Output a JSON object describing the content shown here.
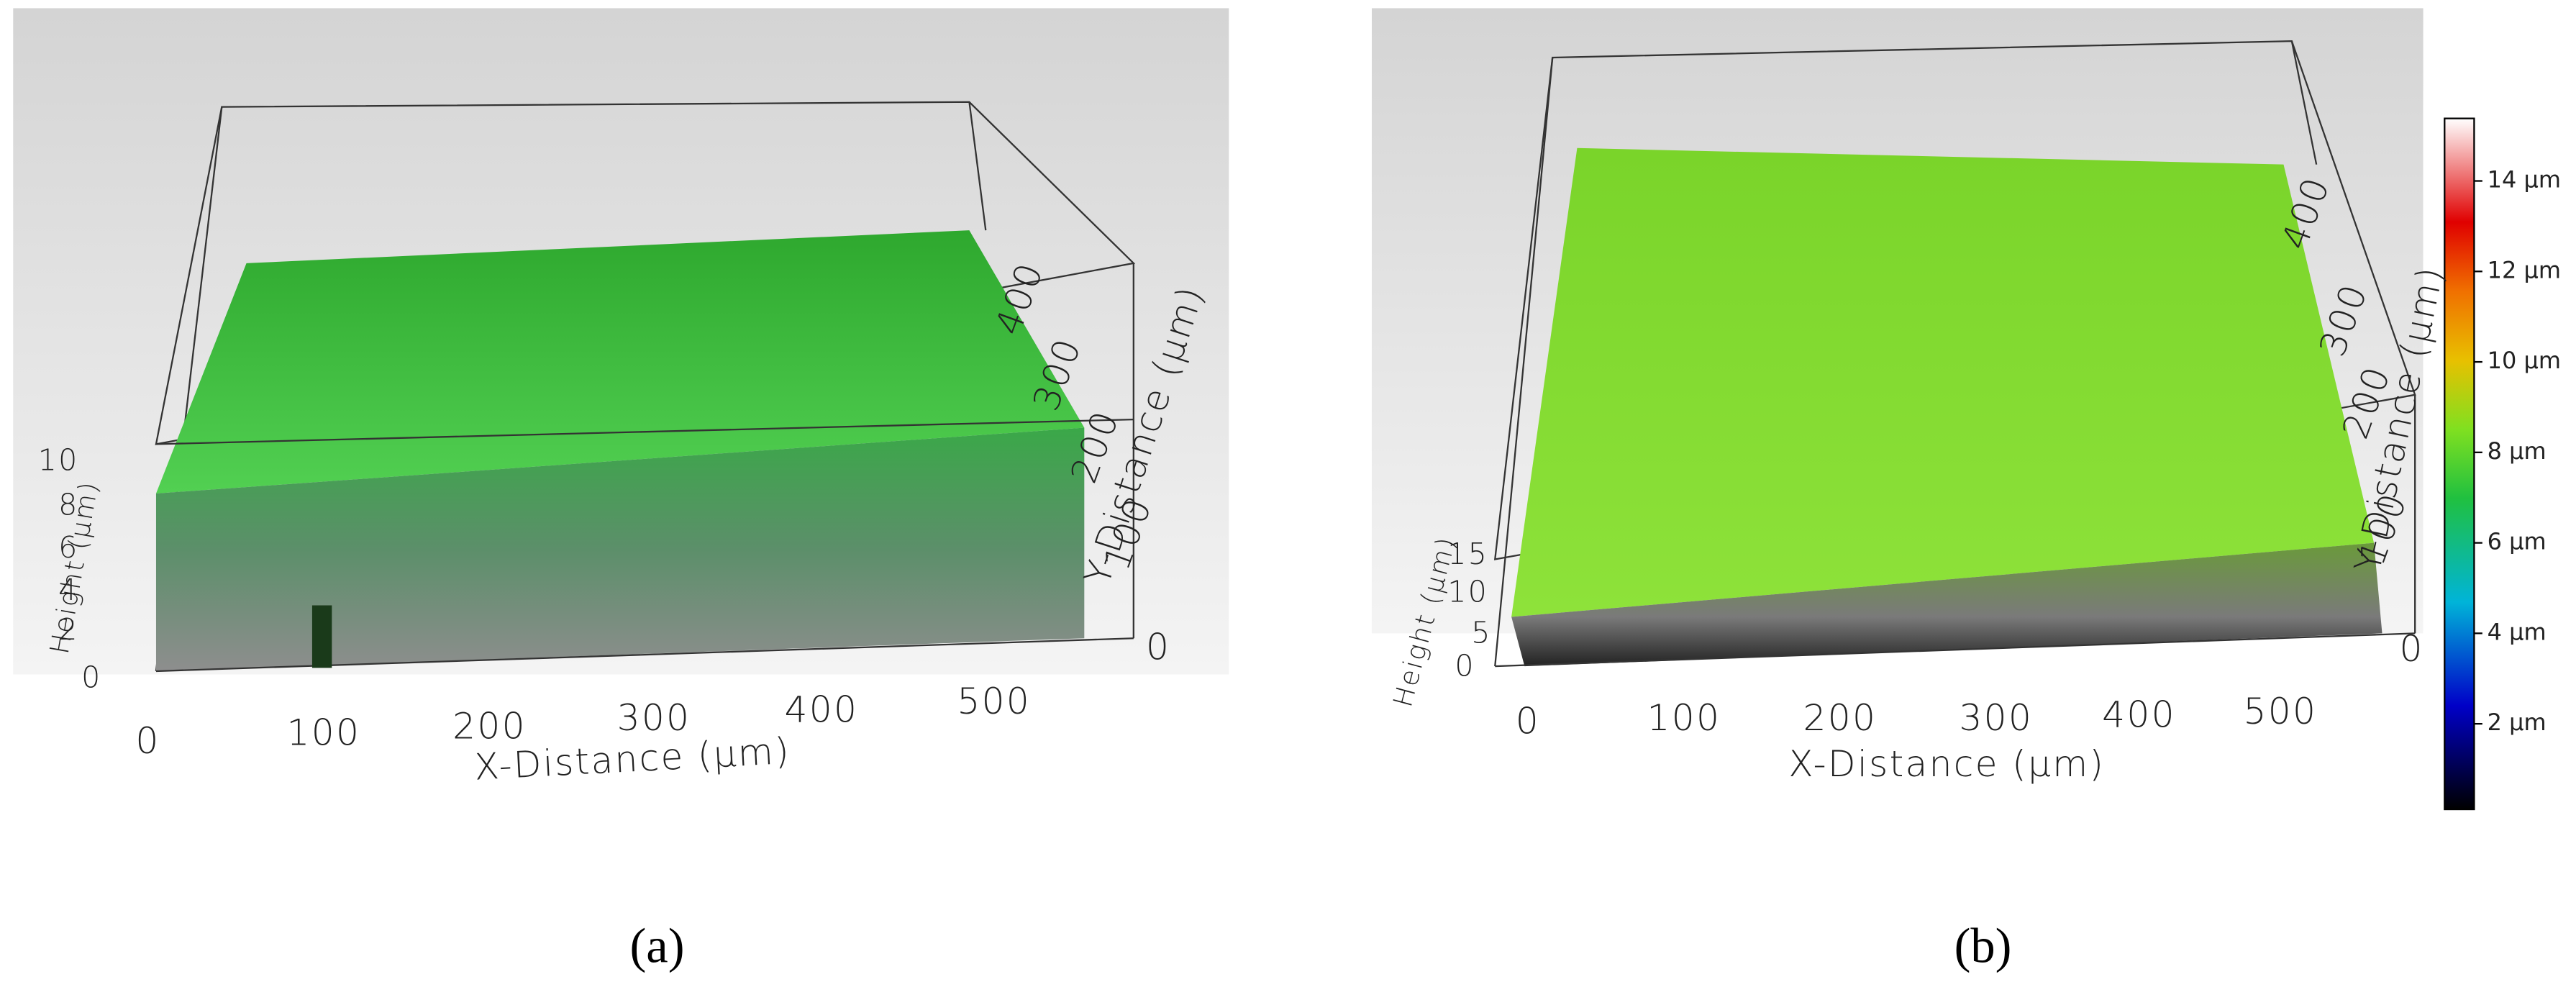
{
  "panels": [
    {
      "label": "(a)",
      "x_axis": {
        "title": "X-Distance (μm)",
        "ticks": [
          "0",
          "100",
          "200",
          "300",
          "400",
          "500"
        ]
      },
      "y_axis": {
        "title": "Y-Distance (μm)",
        "ticks": [
          "0",
          "100",
          "200",
          "300",
          "400"
        ]
      },
      "z_axis": {
        "title": "Height (μm)",
        "ticks": [
          "0",
          "2",
          "4",
          "6",
          "8",
          "10"
        ]
      }
    },
    {
      "label": "(b)",
      "x_axis": {
        "title": "X-Distance (μm)",
        "ticks": [
          "0",
          "100",
          "200",
          "300",
          "400",
          "500"
        ]
      },
      "y_axis": {
        "title": "Y-Distance (μm)",
        "ticks": [
          "0",
          "100",
          "200",
          "300",
          "400"
        ]
      },
      "z_axis": {
        "title": "Height (μm)",
        "ticks": [
          "0",
          "5",
          "10",
          "15"
        ]
      }
    }
  ],
  "colorbar": {
    "labels": [
      "2 μm",
      "4 μm",
      "6 μm",
      "8 μm",
      "10 μm",
      "12 μm",
      "14 μm"
    ]
  }
}
